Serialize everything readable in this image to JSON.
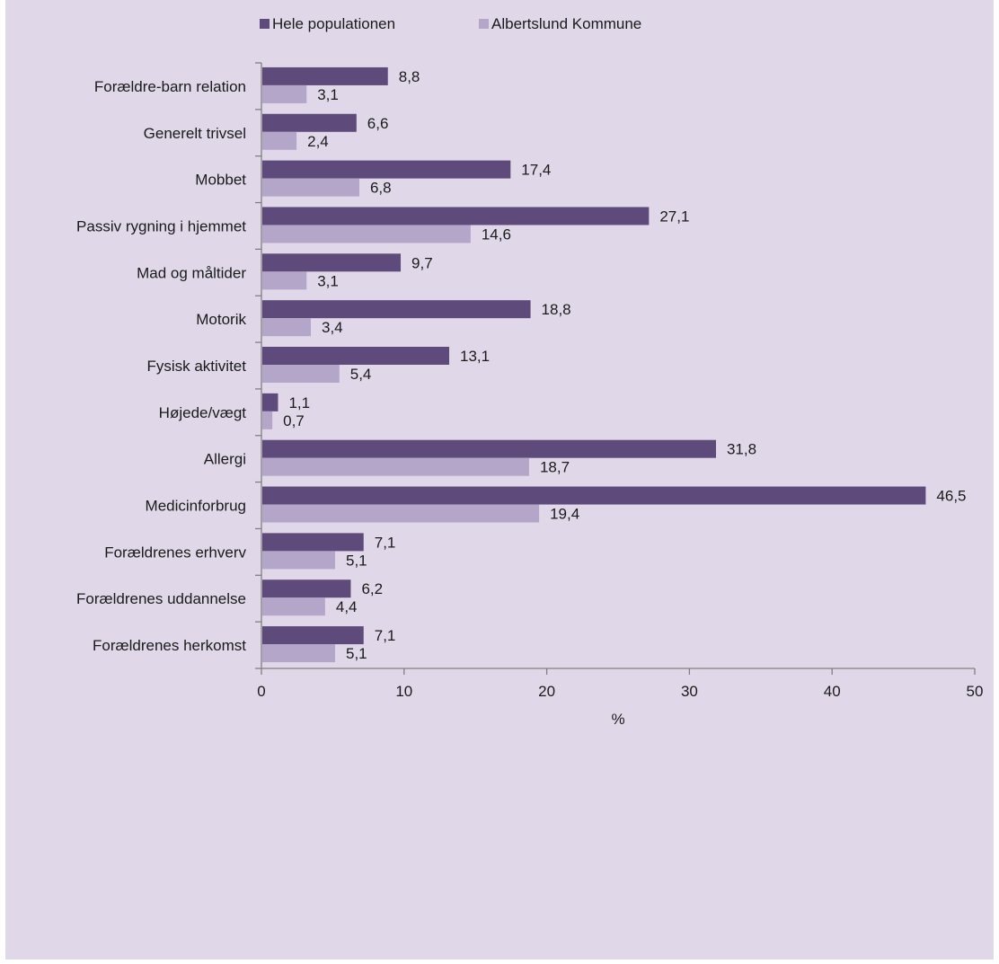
{
  "chart_data": {
    "type": "bar",
    "orientation": "horizontal",
    "categories": [
      "Forældre-barn relation",
      "Generelt trivsel",
      "Mobbet ",
      "Passiv rygning i hjemmet",
      "Mad og måltider",
      "Motorik",
      "Fysisk aktivitet",
      "Højede/vægt",
      "Allergi",
      "Medicinforbrug",
      "Forældrenes erhverv",
      "Forældrenes uddannelse",
      "Forældrenes herkomst"
    ],
    "series": [
      {
        "name": "Hele populationen",
        "color": "#5e4a7b",
        "values": [
          8.8,
          6.6,
          17.4,
          27.1,
          9.7,
          18.8,
          13.1,
          1.1,
          31.8,
          46.5,
          7.1,
          6.2,
          7.1
        ],
        "labels": [
          "8,8",
          "6,6",
          "17,4",
          "27,1",
          "9,7",
          "18,8",
          "13,1",
          "1,1",
          "31,8",
          "46,5",
          "7,1",
          "6,2",
          "7,1"
        ]
      },
      {
        "name": "Albertslund Kommune",
        "color": "#b3a6c9",
        "values": [
          3.1,
          2.4,
          6.8,
          14.6,
          3.1,
          3.4,
          5.4,
          0.7,
          18.7,
          19.4,
          5.1,
          4.4,
          5.1
        ],
        "labels": [
          "3,1",
          "2,4",
          "6,8",
          "14,6",
          "3,1",
          "3,4",
          "5,4",
          "0,7",
          "18,7",
          "19,4",
          "5,1",
          "4,4",
          "5,1"
        ]
      }
    ],
    "xlabel": "%",
    "xlim": [
      0,
      50
    ],
    "xticks": [
      0,
      10,
      20,
      30,
      40,
      50
    ],
    "legend_position": "top",
    "grid": false,
    "background": "#e0d8e8"
  }
}
